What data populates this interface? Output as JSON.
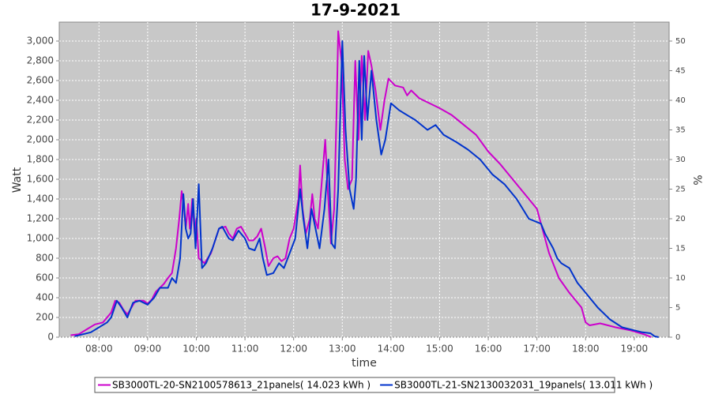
{
  "chart_data": {
    "type": "line",
    "title": "17-9-2021",
    "xlabel": "time",
    "ylabel": "Watt",
    "y2label": "%",
    "xlim": [
      "07:11",
      "19:43"
    ],
    "xticks": [
      "08:00",
      "09:00",
      "10:00",
      "11:00",
      "12:00",
      "13:00",
      "14:00",
      "15:00",
      "16:00",
      "17:00",
      "18:00",
      "19:00"
    ],
    "ylim": [
      0,
      3192
    ],
    "yticks": [
      0,
      200,
      400,
      600,
      800,
      {
        "value": 1000,
        "label": "1,000"
      },
      {
        "value": 1200,
        "label": "1,200"
      },
      {
        "value": 1400,
        "label": "1,400"
      },
      {
        "value": 1600,
        "label": "1,600"
      },
      {
        "value": 1800,
        "label": "1,800"
      },
      {
        "value": 2000,
        "label": "2,000"
      },
      {
        "value": 2200,
        "label": "2,200"
      },
      {
        "value": 2400,
        "label": "2,400"
      },
      {
        "value": 2600,
        "label": "2,600"
      },
      {
        "value": 2800,
        "label": "2,800"
      },
      {
        "value": 3000,
        "label": "3,000"
      }
    ],
    "y2lim": [
      0,
      53.2
    ],
    "y2ticks": [
      0,
      5,
      10,
      15,
      20,
      25,
      30,
      35,
      40,
      45,
      50
    ],
    "grid": true,
    "legend": "bottom",
    "series": [
      {
        "name": "SB3000TL-20-SN2100578613_21panels( 14.023 kWh )",
        "color": "#cc00cc",
        "x": [
          "07:25",
          "07:35",
          "07:45",
          "07:55",
          "08:05",
          "08:15",
          "08:20",
          "08:25",
          "08:30",
          "08:35",
          "08:40",
          "08:45",
          "08:55",
          "09:00",
          "09:05",
          "09:10",
          "09:20",
          "09:25",
          "09:30",
          "09:35",
          "09:39",
          "09:42",
          "09:45",
          "09:47",
          "09:50",
          "09:52",
          "09:55",
          "09:58",
          "10:00",
          "10:03",
          "10:10",
          "10:18",
          "10:28",
          "10:36",
          "10:40",
          "10:45",
          "10:50",
          "10:55",
          "11:00",
          "11:05",
          "11:10",
          "11:15",
          "11:20",
          "11:25",
          "11:29",
          "11:35",
          "11:40",
          "11:45",
          "11:50",
          "11:55",
          "12:00",
          "12:06",
          "12:08",
          "12:11",
          "12:15",
          "12:20",
          "12:23",
          "12:26",
          "12:30",
          "12:35",
          "12:39",
          "12:42",
          "12:46",
          "12:50",
          "12:53",
          "12:55",
          "12:59",
          "13:03",
          "13:07",
          "13:12",
          "13:16",
          "13:20",
          "13:24",
          "13:28",
          "13:32",
          "13:36",
          "13:41",
          "13:47",
          "13:52",
          "13:57",
          "14:05",
          "14:15",
          "14:20",
          "14:25",
          "14:35",
          "14:45",
          "15:00",
          "15:15",
          "15:30",
          "15:45",
          "16:00",
          "16:15",
          "16:30",
          "16:45",
          "17:00",
          "17:10",
          "17:15",
          "17:27",
          "17:40",
          "17:55",
          "18:00",
          "18:05",
          "18:18",
          "18:37",
          "18:55",
          "19:12",
          "19:21"
        ],
        "values": [
          20,
          30,
          80,
          130,
          150,
          250,
          370,
          350,
          280,
          230,
          300,
          370,
          370,
          340,
          380,
          460,
          540,
          600,
          650,
          900,
          1200,
          1480,
          1300,
          1100,
          1350,
          1100,
          1400,
          1050,
          1200,
          800,
          750,
          850,
          1100,
          1120,
          1050,
          1000,
          1100,
          1120,
          1050,
          980,
          980,
          1020,
          1100,
          900,
          720,
          800,
          820,
          770,
          800,
          1000,
          1100,
          1400,
          1740,
          1300,
          1050,
          1200,
          1450,
          1200,
          1100,
          1600,
          2000,
          1500,
          950,
          1300,
          2300,
          3100,
          2800,
          1800,
          1500,
          1600,
          2800,
          2000,
          2850,
          2200,
          2900,
          2750,
          2500,
          2100,
          2400,
          2620,
          2550,
          2530,
          2450,
          2500,
          2420,
          2380,
          2320,
          2250,
          2150,
          2050,
          1880,
          1750,
          1600,
          1450,
          1300,
          1000,
          850,
          600,
          450,
          300,
          150,
          120,
          140,
          100,
          70,
          30,
          0
        ]
      },
      {
        "name": "SB3000TL-21-SN2130032031_19panels( 13.011 kWh )",
        "color": "#0033cc",
        "x": [
          "07:30",
          "07:40",
          "07:50",
          "08:00",
          "08:10",
          "08:15",
          "08:22",
          "08:28",
          "08:35",
          "08:42",
          "08:50",
          "09:00",
          "09:08",
          "09:15",
          "09:25",
          "09:30",
          "09:35",
          "09:40",
          "09:44",
          "09:47",
          "09:50",
          "09:53",
          "09:56",
          "09:59",
          "10:03",
          "10:07",
          "10:12",
          "10:20",
          "10:28",
          "10:32",
          "10:40",
          "10:45",
          "10:52",
          "11:00",
          "11:05",
          "11:12",
          "11:18",
          "11:22",
          "11:27",
          "11:35",
          "11:42",
          "11:48",
          "11:55",
          "12:02",
          "12:08",
          "12:12",
          "12:17",
          "12:22",
          "12:27",
          "12:32",
          "12:38",
          "12:43",
          "12:47",
          "12:51",
          "12:55",
          "13:00",
          "13:04",
          "13:09",
          "13:14",
          "13:17",
          "13:21",
          "13:24",
          "13:27",
          "13:31",
          "13:36",
          "13:42",
          "13:48",
          "13:53",
          "14:00",
          "14:10",
          "14:20",
          "14:30",
          "14:45",
          "14:55",
          "15:05",
          "15:20",
          "15:35",
          "15:50",
          "16:05",
          "16:20",
          "16:35",
          "16:50",
          "17:05",
          "17:10",
          "17:20",
          "17:25",
          "17:30",
          "17:40",
          "17:50",
          "18:00",
          "18:15",
          "18:30",
          "18:45",
          "19:00",
          "19:10",
          "19:20",
          "19:25",
          "19:30"
        ],
        "values": [
          10,
          30,
          50,
          100,
          150,
          200,
          370,
          300,
          200,
          350,
          370,
          330,
          400,
          500,
          500,
          600,
          550,
          800,
          1450,
          1100,
          1000,
          1050,
          1400,
          900,
          1550,
          700,
          750,
          900,
          1100,
          1120,
          1000,
          980,
          1080,
          1000,
          900,
          880,
          1000,
          800,
          630,
          650,
          750,
          700,
          850,
          1000,
          1500,
          1200,
          900,
          1300,
          1100,
          900,
          1300,
          1800,
          950,
          900,
          1500,
          3000,
          2100,
          1500,
          1300,
          1600,
          2800,
          2000,
          2850,
          2200,
          2700,
          2200,
          1850,
          2000,
          2370,
          2300,
          2250,
          2200,
          2100,
          2150,
          2050,
          1980,
          1900,
          1800,
          1650,
          1550,
          1400,
          1200,
          1150,
          1050,
          900,
          800,
          750,
          700,
          550,
          450,
          300,
          180,
          100,
          70,
          50,
          40,
          10,
          0
        ]
      }
    ]
  }
}
